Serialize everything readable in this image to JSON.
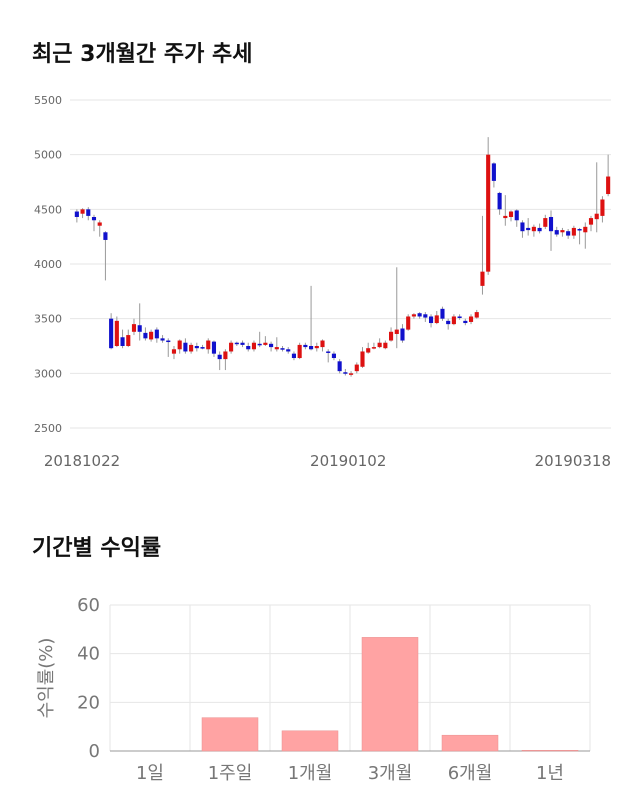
{
  "sections": {
    "price_title": "최근 3개월간 주가 추세",
    "return_title": "기간별 수익률"
  },
  "colors": {
    "up": "#dd1111",
    "down": "#1111cc",
    "bar": "#ffa3a3",
    "grid": "#e6e6e6"
  },
  "chart_data": [
    {
      "type": "candlestick",
      "title": "최근 3개월간 주가 추세",
      "ylim": [
        2500,
        5500
      ],
      "y_ticks": [
        2500,
        3000,
        3500,
        4000,
        4500,
        5000,
        5500
      ],
      "x_tick_labels": [
        "20181022",
        "20190102",
        "20190318"
      ],
      "candles": [
        [
          4480,
          4430,
          4500,
          4380
        ],
        [
          4460,
          4500,
          4510,
          4420
        ],
        [
          4500,
          4440,
          4520,
          4400
        ],
        [
          4430,
          4400,
          4450,
          4300
        ],
        [
          4350,
          4380,
          4400,
          4250
        ],
        [
          4290,
          4220,
          4300,
          3850
        ],
        [
          3500,
          3230,
          3550,
          3220
        ],
        [
          3250,
          3480,
          3520,
          3240
        ],
        [
          3330,
          3250,
          3400,
          3230
        ],
        [
          3250,
          3350,
          3400,
          3240
        ],
        [
          3380,
          3450,
          3500,
          3350
        ],
        [
          3440,
          3380,
          3640,
          3300
        ],
        [
          3370,
          3320,
          3420,
          3300
        ],
        [
          3310,
          3380,
          3400,
          3290
        ],
        [
          3400,
          3320,
          3420,
          3280
        ],
        [
          3320,
          3300,
          3350,
          3280
        ],
        [
          3300,
          3290,
          3320,
          3150
        ],
        [
          3180,
          3220,
          3250,
          3130
        ],
        [
          3220,
          3300,
          3310,
          3180
        ],
        [
          3280,
          3200,
          3320,
          3180
        ],
        [
          3200,
          3260,
          3280,
          3180
        ],
        [
          3250,
          3230,
          3280,
          3200
        ],
        [
          3240,
          3230,
          3260,
          3220
        ],
        [
          3220,
          3300,
          3320,
          3180
        ],
        [
          3290,
          3180,
          3300,
          3150
        ],
        [
          3170,
          3130,
          3200,
          3030
        ],
        [
          3130,
          3200,
          3220,
          3030
        ],
        [
          3200,
          3280,
          3300,
          3180
        ],
        [
          3280,
          3270,
          3290,
          3250
        ],
        [
          3280,
          3260,
          3300,
          3240
        ],
        [
          3250,
          3220,
          3280,
          3200
        ],
        [
          3220,
          3280,
          3300,
          3200
        ],
        [
          3270,
          3260,
          3380,
          3240
        ],
        [
          3260,
          3280,
          3340,
          3250
        ],
        [
          3270,
          3240,
          3290,
          3200
        ],
        [
          3220,
          3240,
          3330,
          3200
        ],
        [
          3230,
          3220,
          3250,
          3200
        ],
        [
          3220,
          3200,
          3240,
          3180
        ],
        [
          3180,
          3140,
          3200,
          3120
        ],
        [
          3140,
          3260,
          3280,
          3130
        ],
        [
          3260,
          3240,
          3280,
          3220
        ],
        [
          3250,
          3220,
          3800,
          3210
        ],
        [
          3230,
          3250,
          3280,
          3200
        ],
        [
          3240,
          3300,
          3310,
          3200
        ],
        [
          3200,
          3190,
          3220,
          3100
        ],
        [
          3180,
          3140,
          3200,
          3120
        ],
        [
          3110,
          3020,
          3130,
          3000
        ],
        [
          3010,
          3000,
          3040,
          2980
        ],
        [
          2990,
          3000,
          3020,
          2970
        ],
        [
          3020,
          3080,
          3100,
          3000
        ],
        [
          3060,
          3200,
          3240,
          3050
        ],
        [
          3190,
          3230,
          3280,
          3180
        ],
        [
          3230,
          3240,
          3280,
          3220
        ],
        [
          3240,
          3280,
          3320,
          3230
        ],
        [
          3230,
          3280,
          3300,
          3220
        ],
        [
          3300,
          3380,
          3420,
          3290
        ],
        [
          3360,
          3400,
          3970,
          3230
        ],
        [
          3410,
          3300,
          3450,
          3280
        ],
        [
          3400,
          3520,
          3540,
          3390
        ],
        [
          3520,
          3540,
          3550,
          3500
        ],
        [
          3550,
          3520,
          3560,
          3500
        ],
        [
          3540,
          3510,
          3560,
          3470
        ],
        [
          3520,
          3460,
          3540,
          3420
        ],
        [
          3460,
          3530,
          3570,
          3450
        ],
        [
          3590,
          3500,
          3610,
          3480
        ],
        [
          3480,
          3450,
          3500,
          3400
        ],
        [
          3450,
          3520,
          3540,
          3440
        ],
        [
          3520,
          3510,
          3540,
          3490
        ],
        [
          3480,
          3460,
          3500,
          3440
        ],
        [
          3470,
          3520,
          3540,
          3450
        ],
        [
          3510,
          3560,
          3580,
          3500
        ],
        [
          3800,
          3930,
          4440,
          3720
        ],
        [
          3930,
          5000,
          5160,
          3900
        ],
        [
          4920,
          4760,
          4930,
          4700
        ],
        [
          4650,
          4500,
          4660,
          4450
        ],
        [
          4420,
          4440,
          4630,
          4350
        ],
        [
          4430,
          4480,
          4490,
          4390
        ],
        [
          4490,
          4400,
          4500,
          4340
        ],
        [
          4380,
          4300,
          4400,
          4240
        ],
        [
          4330,
          4310,
          4420,
          4260
        ],
        [
          4300,
          4340,
          4360,
          4250
        ],
        [
          4330,
          4300,
          4370,
          4280
        ],
        [
          4340,
          4420,
          4450,
          4320
        ],
        [
          4430,
          4300,
          4490,
          4120
        ],
        [
          4310,
          4270,
          4340,
          4250
        ],
        [
          4290,
          4310,
          4330,
          4250
        ],
        [
          4300,
          4260,
          4320,
          4230
        ],
        [
          4260,
          4330,
          4350,
          4230
        ],
        [
          4320,
          4310,
          4330,
          4180
        ],
        [
          4290,
          4340,
          4380,
          4140
        ],
        [
          4360,
          4420,
          4440,
          4300
        ],
        [
          4410,
          4460,
          4930,
          4290
        ],
        [
          4440,
          4590,
          4620,
          4380
        ],
        [
          4640,
          4800,
          5000,
          4620
        ]
      ]
    },
    {
      "type": "bar",
      "categories": [
        "1일",
        "1주일",
        "1개월",
        "3개월",
        "6개월",
        "1년"
      ],
      "values": [
        0,
        13.7,
        8.3,
        46.7,
        6.5,
        0.3
      ],
      "ylabel": "수익률(%)",
      "ylim": [
        0,
        60
      ],
      "y_ticks": [
        0,
        20,
        40,
        60
      ]
    }
  ]
}
